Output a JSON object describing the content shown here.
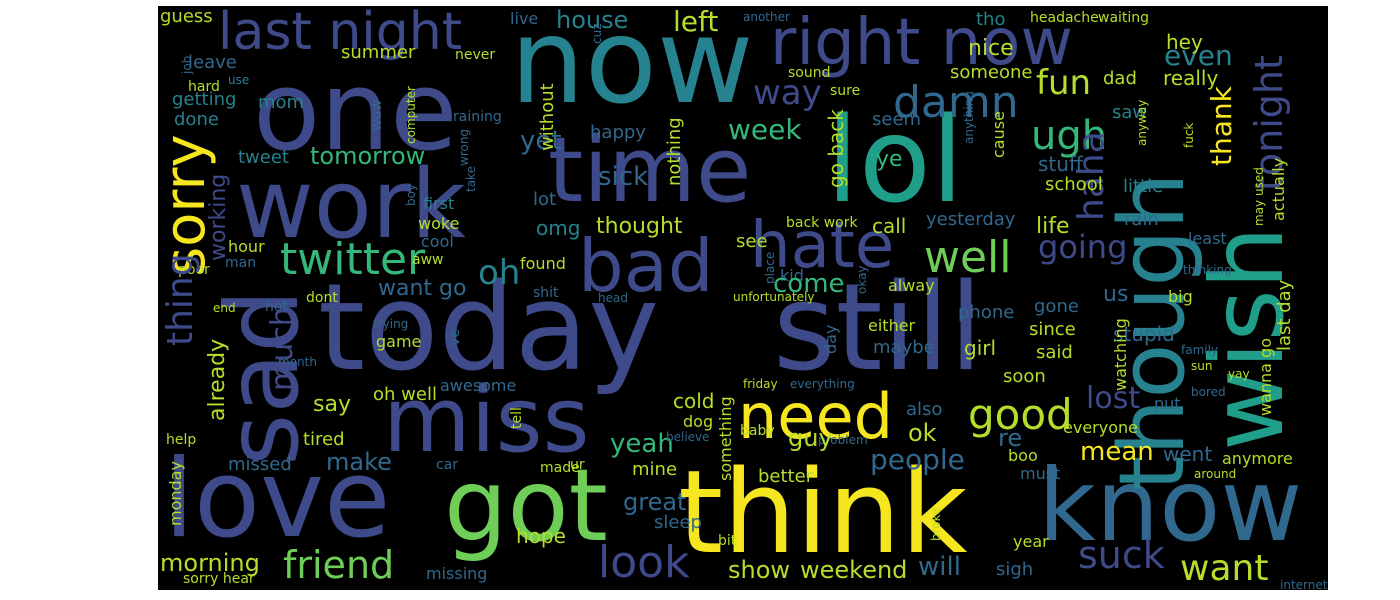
{
  "words": {
    "today": "today",
    "still": "still",
    "now": "now",
    "one": "one",
    "work": "work",
    "time": "time",
    "lol": "lol",
    "think": "think",
    "know": "know",
    "love": "love",
    "got": "got",
    "sad": "sad",
    "miss": "miss",
    "wish": "wish",
    "though": "though",
    "right_now": "right now",
    "last_night": "last night",
    "hate": "hate",
    "bad": "bad",
    "sorry": "sorry",
    "need": "need",
    "twitter": "twitter",
    "good": "good",
    "damn": "damn",
    "ugh": "ugh",
    "fun": "fun",
    "well": "well",
    "going": "going",
    "haha": "haha",
    "tonight": "tonight",
    "thank": "thank",
    "even": "even",
    "nice": "nice",
    "hey": "hey",
    "left": "left",
    "house": "house",
    "live": "live",
    "guess": "guess",
    "leave": "leave",
    "summer": "summer",
    "never": "never",
    "hard": "hard",
    "getting": "getting",
    "mom": "mom",
    "done": "done",
    "way": "way",
    "week": "week",
    "yet": "yet",
    "sick": "sick",
    "tomorrow": "tomorrow",
    "tweet": "tweet",
    "working": "working",
    "thing": "thing",
    "omg": "omg",
    "thought": "thought",
    "oh": "oh",
    "much": "much",
    "already": "already",
    "say": "say",
    "make": "make",
    "missed": "missed",
    "morning": "morning",
    "friend": "friend",
    "look": "look",
    "hope": "hope",
    "show": "show",
    "weekend": "weekend",
    "will": "will",
    "suck": "suck",
    "want": "want",
    "mean": "mean",
    "went": "went",
    "anymore": "anymore",
    "people": "people",
    "guy": "guy",
    "yeah": "yeah",
    "great": "great",
    "sleep": "sleep",
    "better": "better",
    "made": "made",
    "car": "car",
    "mine": "mine",
    "come": "come",
    "ok": "ok",
    "re": "re",
    "lost": "lost",
    "also": "also",
    "girl": "girl",
    "maybe": "maybe",
    "either": "either",
    "phone": "phone",
    "since": "since",
    "said": "said",
    "stupid": "stupid",
    "life": "life",
    "rain": "rain",
    "call": "call",
    "yesterday": "yesterday",
    "school": "school",
    "stuff": "stuff",
    "little": "little",
    "actually": "actually",
    "last_day": "last day",
    "go_back": "go back",
    "ye": "ye",
    "seem": "seem",
    "cause": "cause",
    "dad": "dad",
    "really": "really",
    "saw": "saw",
    "someone": "someone",
    "happy": "happy",
    "nothing": "nothing",
    "see": "see",
    "want_go": "want go",
    "found": "found",
    "shit": "shit",
    "dont": "dont",
    "cool": "cool",
    "hour": "hour",
    "poor": "poor",
    "aww": "aww",
    "man": "man",
    "woke": "woke",
    "first": "first",
    "lot": "lot",
    "oh_well": "oh well",
    "tired": "tired",
    "cold": "cold",
    "dog": "dog",
    "baby": "baby",
    "awesome": "awesome",
    "game": "game",
    "us": "us",
    "watching": "watching",
    "gone": "gone",
    "soon": "soon",
    "put": "put",
    "everyone": "everyone",
    "boo": "boo",
    "must": "must",
    "sigh": "sigh",
    "year": "year",
    "help": "help",
    "monday": "monday",
    "sorry_hear": "sorry hear",
    "missing": "missing",
    "bit": "bit",
    "broke": "broke",
    "around": "around",
    "wanna_go": "wanna go",
    "internet": "internet",
    "headache": "headache",
    "waiting": "waiting",
    "tho": "tho",
    "another": "another",
    "sound": "sound",
    "sure": "sure",
    "without": "without",
    "raining": "raining",
    "wow": "wow",
    "computer": "computer",
    "anything": "anything",
    "anyway": "anyway",
    "fuck": "fuck",
    "used": "used",
    "may": "may",
    "least": "least",
    "thinking": "thinking",
    "big": "big",
    "family": "family",
    "sun": "sun",
    "yay": "yay",
    "bored": "bored",
    "alway": "alway",
    "kid": "kid",
    "place": "place",
    "okay": "okay",
    "day": "day",
    "unfortunately": "unfortunately",
    "head": "head",
    "trying": "trying",
    "ve": "ve",
    "month": "month",
    "end": "end",
    "hot": "hot",
    "friday": "friday",
    "everything": "everything",
    "something": "something",
    "problem": "problem",
    "believe": "believe",
    "tell": "tell",
    "ur": "ur",
    "back_work": "back work",
    "take": "take",
    "wrong": "wrong",
    "boy": "boy",
    "job": "job",
    "use": "use",
    "cuz": "cuz"
  },
  "colors": {
    "background": "#000000",
    "yellow": "#f6e620",
    "lime": "#b5de2b",
    "green": "#6ece58",
    "teal_light": "#35b779",
    "teal": "#1f9e89",
    "cyan": "#26828e",
    "blue_teal": "#31688e",
    "indigo": "#3e4a89",
    "purple": "#482878",
    "dark_purple": "#440154"
  }
}
